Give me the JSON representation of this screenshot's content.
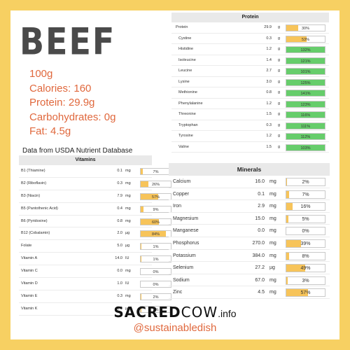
{
  "title": "BEEF",
  "facts": [
    "100g",
    "Calories: 160",
    "Protein: 29.9g",
    "Carbohydrates: 0g",
    "Fat: 4.5g"
  ],
  "source": "Data from USDA Nutrient Database",
  "protein": {
    "header": "Protein",
    "rows": [
      {
        "name": "Protein",
        "value": "29.9",
        "unit": "g",
        "pct": "30%",
        "fraction": 0.3,
        "color": "amber",
        "sub": false
      },
      {
        "name": "Cystine",
        "value": "0.3",
        "unit": "g",
        "pct": "53%",
        "fraction": 0.53,
        "color": "amber",
        "sub": true
      },
      {
        "name": "Histidine",
        "value": "1.2",
        "unit": "g",
        "pct": "132%",
        "fraction": 1.0,
        "color": "green",
        "sub": true
      },
      {
        "name": "Isoleucine",
        "value": "1.4",
        "unit": "g",
        "pct": "121%",
        "fraction": 1.0,
        "color": "green",
        "sub": true
      },
      {
        "name": "Leucine",
        "value": "2.7",
        "unit": "g",
        "pct": "101%",
        "fraction": 1.0,
        "color": "green",
        "sub": true
      },
      {
        "name": "Lysine",
        "value": "3.0",
        "unit": "g",
        "pct": "125%",
        "fraction": 1.0,
        "color": "green",
        "sub": true
      },
      {
        "name": "Methionine",
        "value": "0.8",
        "unit": "g",
        "pct": "141%",
        "fraction": 1.0,
        "color": "green",
        "sub": true
      },
      {
        "name": "Phenylalanine",
        "value": "1.2",
        "unit": "g",
        "pct": "123%",
        "fraction": 1.0,
        "color": "green",
        "sub": true
      },
      {
        "name": "Threonine",
        "value": "1.5",
        "unit": "g",
        "pct": "116%",
        "fraction": 1.0,
        "color": "green",
        "sub": true
      },
      {
        "name": "Tryptophan",
        "value": "0.3",
        "unit": "g",
        "pct": "111%",
        "fraction": 1.0,
        "color": "green",
        "sub": true
      },
      {
        "name": "Tyrosine",
        "value": "1.2",
        "unit": "g",
        "pct": "112%",
        "fraction": 1.0,
        "color": "green",
        "sub": true
      },
      {
        "name": "Valine",
        "value": "1.5",
        "unit": "g",
        "pct": "103%",
        "fraction": 1.0,
        "color": "green",
        "sub": true
      }
    ]
  },
  "vitamins": {
    "header": "Vitamins",
    "rows": [
      {
        "name": "B1 (Thiamine)",
        "value": "0.1",
        "unit": "mg",
        "pct": "7%",
        "fraction": 0.07
      },
      {
        "name": "B2 (Riboflavin)",
        "value": "0.3",
        "unit": "mg",
        "pct": "26%",
        "fraction": 0.26
      },
      {
        "name": "B3 (Niacin)",
        "value": "7.9",
        "unit": "mg",
        "pct": "57%",
        "fraction": 0.57
      },
      {
        "name": "B5 (Pantothenic Acid)",
        "value": "0.4",
        "unit": "mg",
        "pct": "9%",
        "fraction": 0.09
      },
      {
        "name": "B6 (Pyridoxine)",
        "value": "0.8",
        "unit": "mg",
        "pct": "60%",
        "fraction": 0.6
      },
      {
        "name": "B12 (Cobalamin)",
        "value": "2.0",
        "unit": "µg",
        "pct": "84%",
        "fraction": 0.84
      },
      {
        "name": "Folate",
        "value": "5.0",
        "unit": "µg",
        "pct": "1%",
        "fraction": 0.01
      },
      {
        "name": "Vitamin A",
        "value": "14.0",
        "unit": "IU",
        "pct": "1%",
        "fraction": 0.01
      },
      {
        "name": "Vitamin C",
        "value": "0.0",
        "unit": "mg",
        "pct": "0%",
        "fraction": 0.0
      },
      {
        "name": "Vitamin D",
        "value": "1.0",
        "unit": "IU",
        "pct": "0%",
        "fraction": 0.0
      },
      {
        "name": "Vitamin E",
        "value": "0.3",
        "unit": "mg",
        "pct": "2%",
        "fraction": 0.02
      },
      {
        "name": "Vitamin K",
        "value": "1.9",
        "unit": "µg",
        "pct": "2%",
        "fraction": 0.02
      }
    ]
  },
  "minerals": {
    "header": "Minerals",
    "rows": [
      {
        "name": "Calcium",
        "value": "16.0",
        "unit": "mg",
        "pct": "2%",
        "fraction": 0.02
      },
      {
        "name": "Copper",
        "value": "0.1",
        "unit": "mg",
        "pct": "7%",
        "fraction": 0.07
      },
      {
        "name": "Iron",
        "value": "2.9",
        "unit": "mg",
        "pct": "16%",
        "fraction": 0.16
      },
      {
        "name": "Magnesium",
        "value": "15.0",
        "unit": "mg",
        "pct": "5%",
        "fraction": 0.05
      },
      {
        "name": "Manganese",
        "value": "0.0",
        "unit": "mg",
        "pct": "0%",
        "fraction": 0.0
      },
      {
        "name": "Phosphorus",
        "value": "270.0",
        "unit": "mg",
        "pct": "39%",
        "fraction": 0.39
      },
      {
        "name": "Potassium",
        "value": "384.0",
        "unit": "mg",
        "pct": "8%",
        "fraction": 0.08
      },
      {
        "name": "Selenium",
        "value": "27.2",
        "unit": "µg",
        "pct": "49%",
        "fraction": 0.49
      },
      {
        "name": "Sodium",
        "value": "67.0",
        "unit": "mg",
        "pct": "3%",
        "fraction": 0.03
      },
      {
        "name": "Zinc",
        "value": "4.5",
        "unit": "mg",
        "pct": "57%",
        "fraction": 0.57
      }
    ]
  },
  "brand": {
    "sacred": "SACRED",
    "cow": "COW",
    "info": ".info"
  },
  "handle": "@sustainabledish",
  "colors": {
    "background": "#f7d062",
    "accent": "#e0683d",
    "bar_amber": "#f7c45a",
    "bar_green": "#66cd6b"
  }
}
